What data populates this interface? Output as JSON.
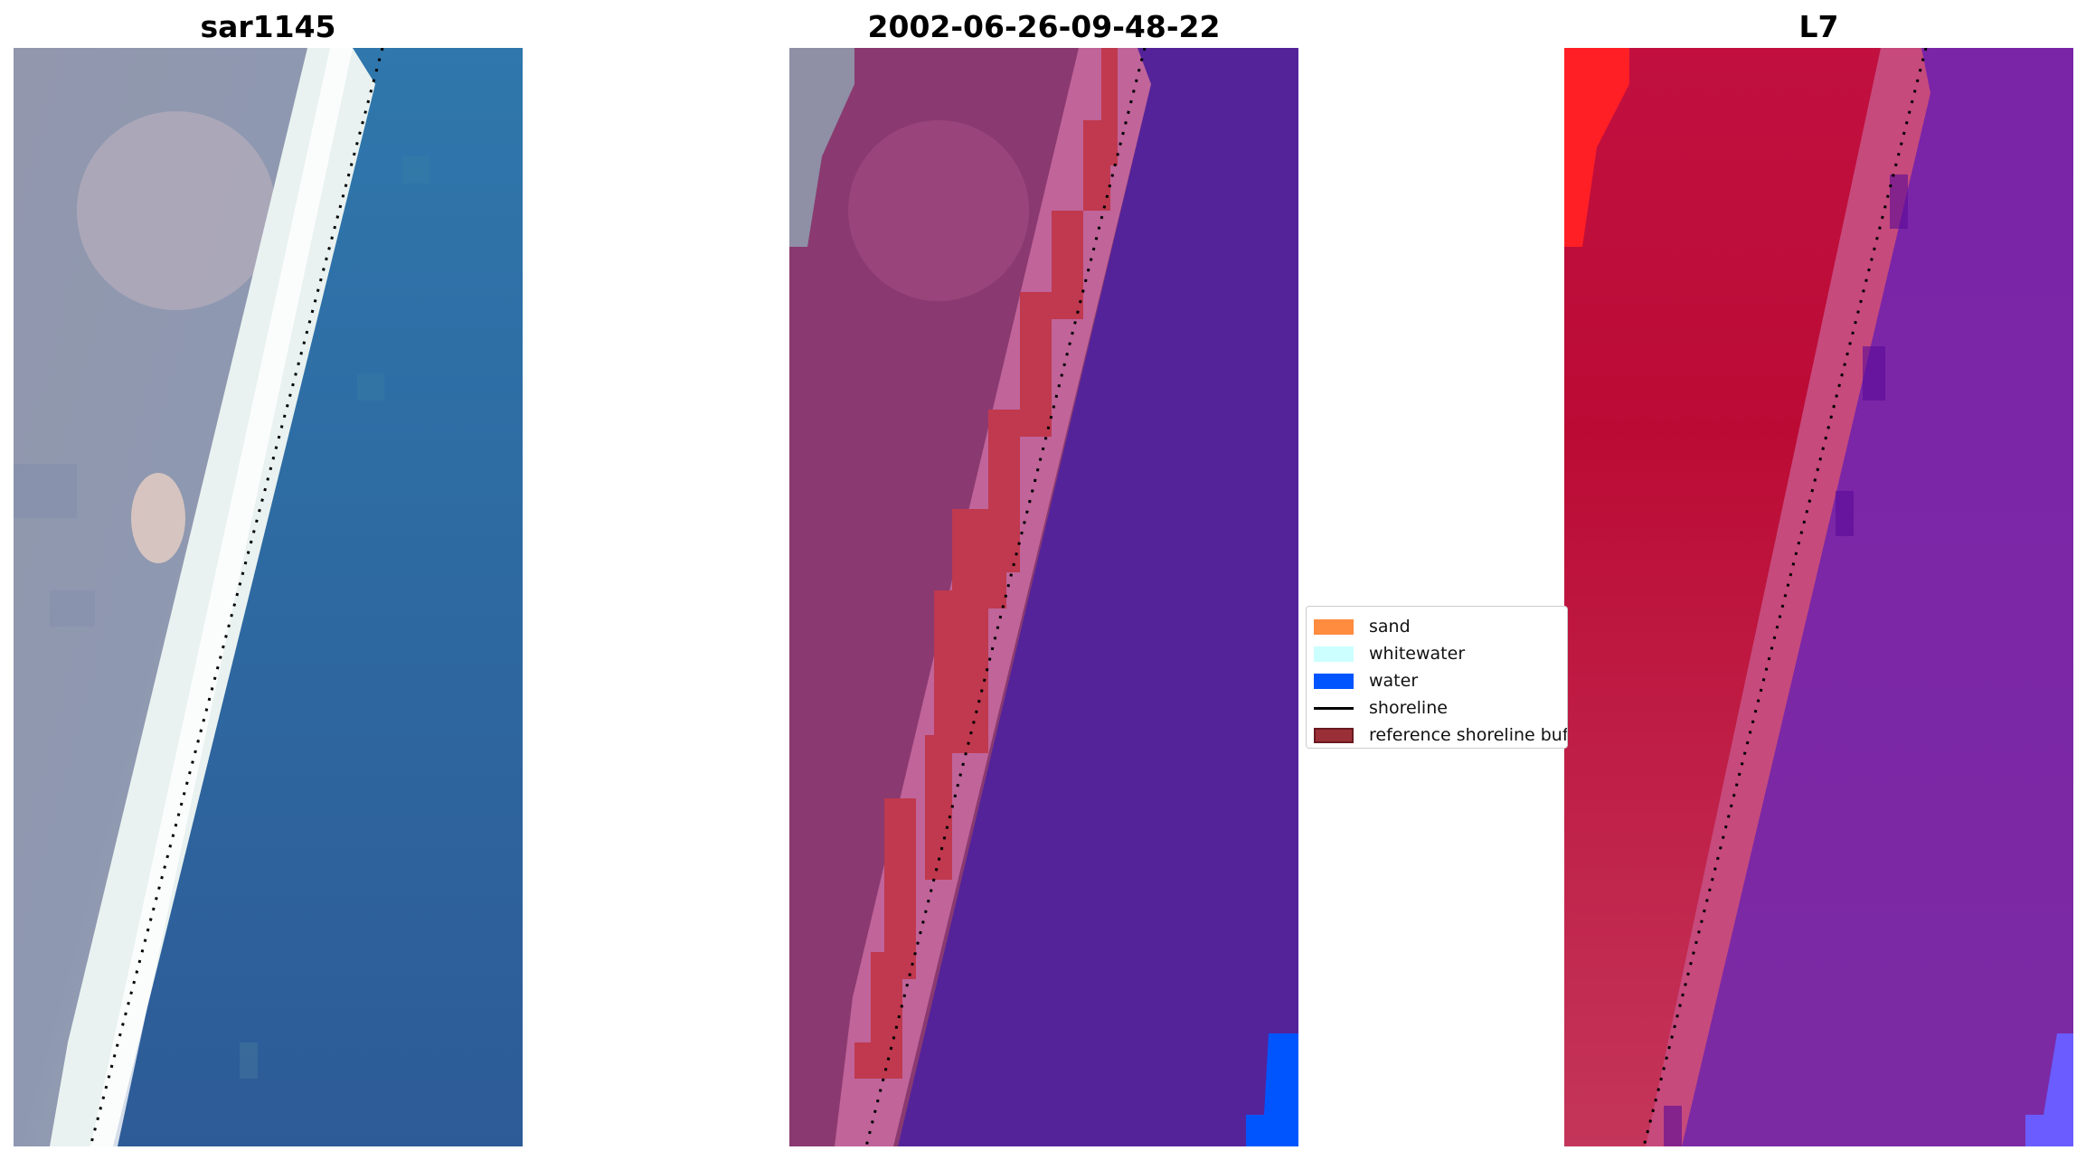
{
  "panels": [
    {
      "title": "sar1145"
    },
    {
      "title": "2002-06-26-09-48-22"
    },
    {
      "title": "L7"
    }
  ],
  "legend": {
    "items": [
      {
        "label": "sand",
        "color": "#ff8c3f",
        "kind": "patch"
      },
      {
        "label": "whitewater",
        "color": "#ccffff",
        "kind": "patch"
      },
      {
        "label": "water",
        "color": "#0055ff",
        "kind": "patch"
      },
      {
        "label": "shoreline",
        "color": "#000000",
        "kind": "line"
      },
      {
        "label": "reference shoreline buffer",
        "color": "#9b2f37",
        "kind": "patch"
      }
    ]
  },
  "colors": {
    "rgb_land": "#8f93a8",
    "rgb_whitewater": "#eef6f4",
    "rgb_water": "#2f68a6",
    "class_land": "#8a3a70",
    "class_sand_blend": "#c0649a",
    "class_buffer": "#c0394e",
    "class_water": "#54239a",
    "class_water_pure": "#0055ff",
    "ndwi_land": "#c0143c",
    "ndwi_beach": "#c84a78",
    "ndwi_water": "#7a2aa6",
    "ndwi_bright": "#ff2020"
  }
}
